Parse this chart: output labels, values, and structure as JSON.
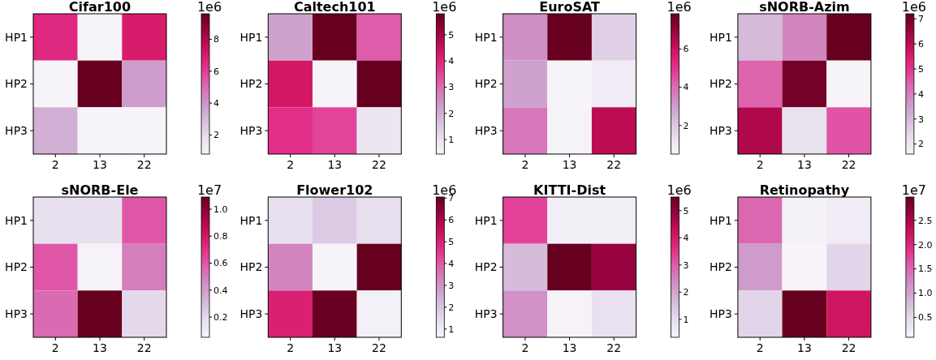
{
  "chart_data": [
    {
      "type": "heatmap",
      "title": "Cifar100",
      "categories": [
        "2",
        "13",
        "22"
      ],
      "y_categories": [
        "HP1",
        "HP2",
        "HP3"
      ],
      "cells": [
        [
          6.5,
          0.8,
          7.0
        ],
        [
          0.8,
          9.6,
          3.8
        ],
        [
          3.3,
          0.8,
          0.8
        ]
      ],
      "clim": [
        0.8,
        9.6
      ],
      "cticks": [
        2,
        4,
        6,
        8
      ],
      "clabel": "1e6"
    },
    {
      "type": "heatmap",
      "title": "Caltech101",
      "categories": [
        "2",
        "13",
        "22"
      ],
      "y_categories": [
        "HP1",
        "HP2",
        "HP3"
      ],
      "cells": [
        [
          2.2,
          5.8,
          3.2
        ],
        [
          4.3,
          0.45,
          5.8
        ],
        [
          3.8,
          3.5,
          0.9
        ]
      ],
      "clim": [
        0.45,
        5.8
      ],
      "cticks": [
        1,
        2,
        3,
        4,
        5
      ],
      "clabel": "1e6"
    },
    {
      "type": "heatmap",
      "title": "EuroSAT",
      "categories": [
        "2",
        "13",
        "22"
      ],
      "y_categories": [
        "HP1",
        "HP2",
        "HP3"
      ],
      "cells": [
        [
          3.3,
          7.85,
          1.8
        ],
        [
          2.9,
          0.5,
          0.9
        ],
        [
          3.8,
          0.6,
          6.3
        ]
      ],
      "clim": [
        0.5,
        7.85
      ],
      "cticks": [
        2,
        4,
        6
      ],
      "clabel": "1e6"
    },
    {
      "type": "heatmap",
      "title": "sNORB-Azim",
      "categories": [
        "2",
        "13",
        "22"
      ],
      "y_categories": [
        "HP1",
        "HP2",
        "HP3"
      ],
      "cells": [
        [
          3.0,
          3.9,
          7.2
        ],
        [
          4.4,
          7.0,
          1.6
        ],
        [
          6.2,
          2.2,
          4.6
        ]
      ],
      "clim": [
        1.6,
        7.2
      ],
      "cticks": [
        2,
        3,
        4,
        5,
        6,
        7
      ],
      "clabel": "1e6"
    },
    {
      "type": "heatmap",
      "title": "sNORB-Ele",
      "categories": [
        "2",
        "13",
        "22"
      ],
      "y_categories": [
        "HP1",
        "HP2",
        "HP3"
      ],
      "cells": [
        [
          0.17,
          0.17,
          0.6
        ],
        [
          0.6,
          0.06,
          0.5
        ],
        [
          0.55,
          1.09,
          0.2
        ]
      ],
      "clim": [
        0.05,
        1.09
      ],
      "cticks": [
        {
          "value": 0.2,
          "label": "0.2"
        },
        {
          "value": 0.4,
          "label": "0.4"
        },
        {
          "value": 0.6,
          "label": "0.6"
        },
        {
          "value": 0.8,
          "label": "0.8"
        },
        {
          "value": 1.0,
          "label": "1.0"
        }
      ],
      "clabel": "1e7"
    },
    {
      "type": "heatmap",
      "title": "Flower102",
      "categories": [
        "2",
        "13",
        "22"
      ],
      "y_categories": [
        "HP1",
        "HP2",
        "HP3"
      ],
      "cells": [
        [
          1.4,
          1.9,
          1.4
        ],
        [
          3.3,
          0.62,
          7.05
        ],
        [
          5.0,
          7.0,
          0.8
        ]
      ],
      "clim": [
        0.62,
        7.05
      ],
      "cticks": [
        1,
        2,
        3,
        4,
        5,
        6,
        7
      ],
      "clabel": "1e6"
    },
    {
      "type": "heatmap",
      "title": "KITTI-Dist",
      "categories": [
        "2",
        "13",
        "22"
      ],
      "y_categories": [
        "HP1",
        "HP2",
        "HP3"
      ],
      "cells": [
        [
          3.3,
          0.5,
          0.5
        ],
        [
          1.6,
          5.5,
          4.9
        ],
        [
          2.3,
          0.4,
          0.9
        ]
      ],
      "clim": [
        0.34,
        5.5
      ],
      "cticks": [
        1,
        2,
        3,
        4,
        5
      ],
      "clabel": "1e6"
    },
    {
      "type": "heatmap",
      "title": "Retinopathy",
      "categories": [
        "2",
        "13",
        "22"
      ],
      "y_categories": [
        "HP1",
        "HP2",
        "HP3"
      ],
      "cells": [
        [
          1.5,
          0.15,
          0.25
        ],
        [
          1.1,
          0.1,
          0.55
        ],
        [
          0.55,
          2.98,
          2.2
        ]
      ],
      "clim": [
        0.09,
        2.98
      ],
      "cticks": [
        0.5,
        {
          "value": 1.0,
          "label": "1.0"
        },
        1.5,
        {
          "value": 2.0,
          "label": "2.0"
        },
        2.5
      ],
      "clabel": "1e7"
    }
  ]
}
